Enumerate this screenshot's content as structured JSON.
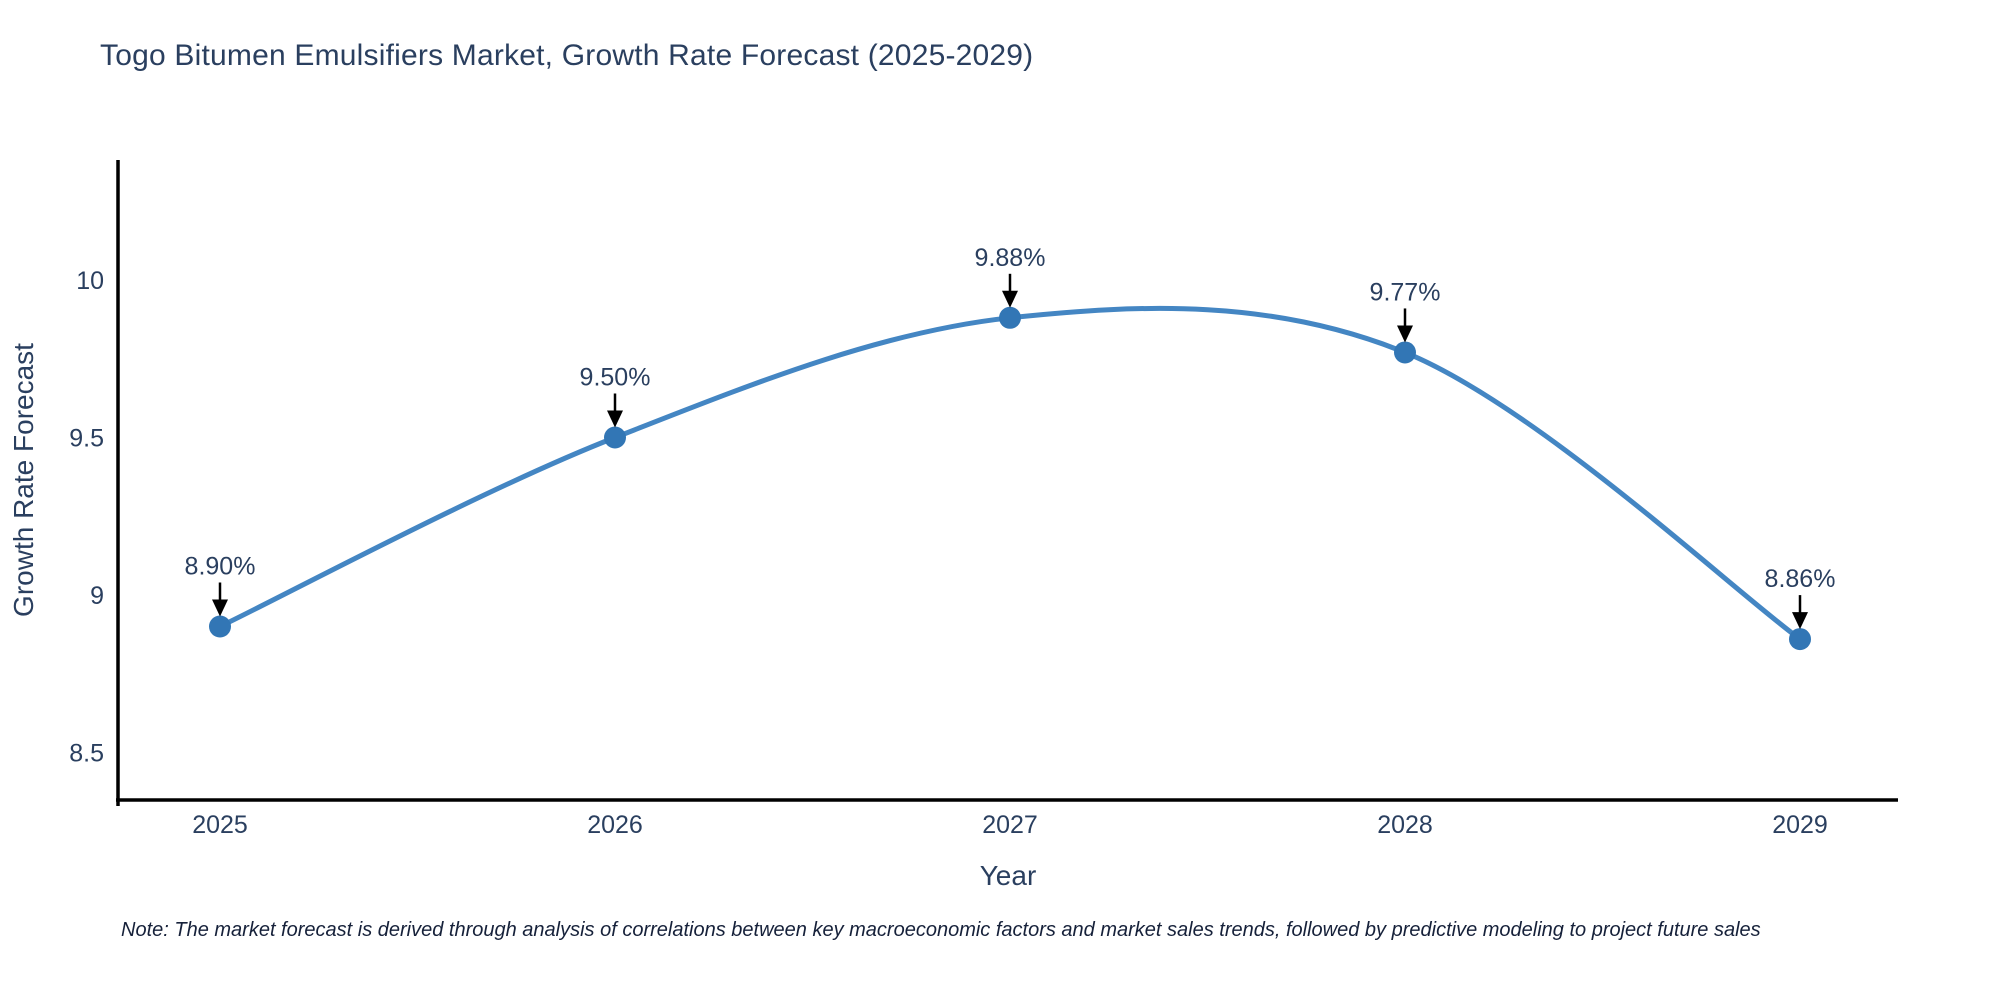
{
  "chart_data": {
    "type": "line",
    "title": "Togo Bitumen Emulsifiers Market, Growth Rate Forecast (2025-2029)",
    "xlabel": "Year",
    "ylabel": "Growth Rate Forecast",
    "categories": [
      "2025",
      "2026",
      "2027",
      "2028",
      "2029"
    ],
    "values": [
      8.9,
      9.5,
      9.88,
      9.77,
      8.86
    ],
    "point_labels": [
      "8.90%",
      "9.50%",
      "9.88%",
      "9.77%",
      "8.86%"
    ],
    "y_ticks": [
      "8.5",
      "9",
      "9.5",
      "10"
    ],
    "y_tick_values": [
      8.5,
      9,
      9.5,
      10
    ],
    "ylim": [
      8.35,
      10.4
    ],
    "grid": false,
    "legend_position": "none",
    "line_color": "#4486c3",
    "marker_color": "#3276b5",
    "axis_color": "#000000",
    "text_color": "#2a3f5f",
    "annotation_arrow_color": "#000000"
  },
  "note": "Note: The market forecast is derived through analysis of correlations between key macroeconomic factors and market sales trends, followed by predictive modeling to project future sales"
}
